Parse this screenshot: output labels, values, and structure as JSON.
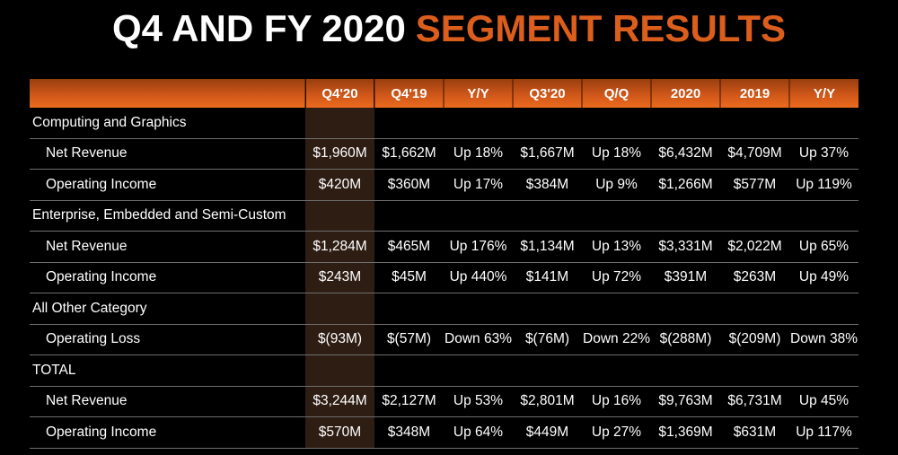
{
  "title": {
    "prefix": "Q4 AND FY 2020",
    "highlight": "SEGMENT RESULTS"
  },
  "colors": {
    "background": "#000000",
    "title_text": "#ffffff",
    "title_accent": "#dc5e1c",
    "header_gradient_top": "#993e0e",
    "header_gradient_bottom": "#ec6b1e",
    "highlight_column_bg": "#2e1d13",
    "row_divider": "#6e6e6e",
    "cell_text": "#ffffff"
  },
  "table": {
    "columns": [
      "",
      "Q4'20",
      "Q4'19",
      "Y/Y",
      "Q3'20",
      "Q/Q",
      "2020",
      "2019",
      "Y/Y"
    ],
    "highlight_column": "Q4'20",
    "highlight_column_index": 1,
    "rows": [
      {
        "type": "section",
        "label": "Computing and Graphics",
        "values": [
          "",
          "",
          "",
          "",
          "",
          "",
          "",
          ""
        ]
      },
      {
        "type": "data",
        "label": "Net Revenue",
        "values": [
          "$1,960M",
          "$1,662M",
          "Up 18%",
          "$1,667M",
          "Up 18%",
          "$6,432M",
          "$4,709M",
          "Up 37%"
        ]
      },
      {
        "type": "data",
        "label": "Operating Income",
        "values": [
          "$420M",
          "$360M",
          "Up 17%",
          "$384M",
          "Up 9%",
          "$1,266M",
          "$577M",
          "Up 119%"
        ]
      },
      {
        "type": "section",
        "label": "Enterprise, Embedded and Semi-Custom",
        "values": [
          "",
          "",
          "",
          "",
          "",
          "",
          "",
          ""
        ]
      },
      {
        "type": "data",
        "label": "Net Revenue",
        "values": [
          "$1,284M",
          "$465M",
          "Up 176%",
          "$1,134M",
          "Up 13%",
          "$3,331M",
          "$2,022M",
          "Up 65%"
        ]
      },
      {
        "type": "data",
        "label": "Operating Income",
        "values": [
          "$243M",
          "$45M",
          "Up 440%",
          "$141M",
          "Up 72%",
          "$391M",
          "$263M",
          "Up 49%"
        ]
      },
      {
        "type": "section",
        "label": "All Other Category",
        "values": [
          "",
          "",
          "",
          "",
          "",
          "",
          "",
          ""
        ]
      },
      {
        "type": "data",
        "label": "Operating Loss",
        "values": [
          "$(93M)",
          "$(57M)",
          "Down 63%",
          "$(76M)",
          "Down 22%",
          "$(288M)",
          "$(209M)",
          "Down 38%"
        ]
      },
      {
        "type": "section",
        "label": "TOTAL",
        "values": [
          "",
          "",
          "",
          "",
          "",
          "",
          "",
          ""
        ]
      },
      {
        "type": "data",
        "label": "Net Revenue",
        "values": [
          "$3,244M",
          "$2,127M",
          "Up 53%",
          "$2,801M",
          "Up 16%",
          "$9,763M",
          "$6,731M",
          "Up 45%"
        ]
      },
      {
        "type": "data",
        "label": "Operating Income",
        "values": [
          "$570M",
          "$348M",
          "Up 64%",
          "$449M",
          "Up 27%",
          "$1,369M",
          "$631M",
          "Up 117%"
        ]
      }
    ]
  },
  "chart_data": {
    "type": "table",
    "title": "Q4 AND FY 2020 SEGMENT RESULTS",
    "columns": [
      "",
      "Q4'20",
      "Q4'19",
      "Y/Y",
      "Q3'20",
      "Q/Q",
      "2020",
      "2019",
      "Y/Y"
    ],
    "rows": [
      [
        "Computing and Graphics",
        "",
        "",
        "",
        "",
        "",
        "",
        "",
        ""
      ],
      [
        "Net Revenue",
        "$1,960M",
        "$1,662M",
        "Up 18%",
        "$1,667M",
        "Up 18%",
        "$6,432M",
        "$4,709M",
        "Up 37%"
      ],
      [
        "Operating Income",
        "$420M",
        "$360M",
        "Up 17%",
        "$384M",
        "Up 9%",
        "$1,266M",
        "$577M",
        "Up 119%"
      ],
      [
        "Enterprise, Embedded and Semi-Custom",
        "",
        "",
        "",
        "",
        "",
        "",
        "",
        ""
      ],
      [
        "Net Revenue",
        "$1,284M",
        "$465M",
        "Up 176%",
        "$1,134M",
        "Up 13%",
        "$3,331M",
        "$2,022M",
        "Up 65%"
      ],
      [
        "Operating Income",
        "$243M",
        "$45M",
        "Up 440%",
        "$141M",
        "Up 72%",
        "$391M",
        "$263M",
        "Up 49%"
      ],
      [
        "All Other Category",
        "",
        "",
        "",
        "",
        "",
        "",
        "",
        ""
      ],
      [
        "Operating Loss",
        "$(93M)",
        "$(57M)",
        "Down 63%",
        "$(76M)",
        "Down 22%",
        "$(288M)",
        "$(209M)",
        "Down 38%"
      ],
      [
        "TOTAL",
        "",
        "",
        "",
        "",
        "",
        "",
        "",
        ""
      ],
      [
        "Net Revenue",
        "$3,244M",
        "$2,127M",
        "Up 53%",
        "$2,801M",
        "Up 16%",
        "$9,763M",
        "$6,731M",
        "Up 45%"
      ],
      [
        "Operating Income",
        "$570M",
        "$348M",
        "Up 64%",
        "$449M",
        "Up 27%",
        "$1,369M",
        "$631M",
        "Up 117%"
      ]
    ]
  }
}
